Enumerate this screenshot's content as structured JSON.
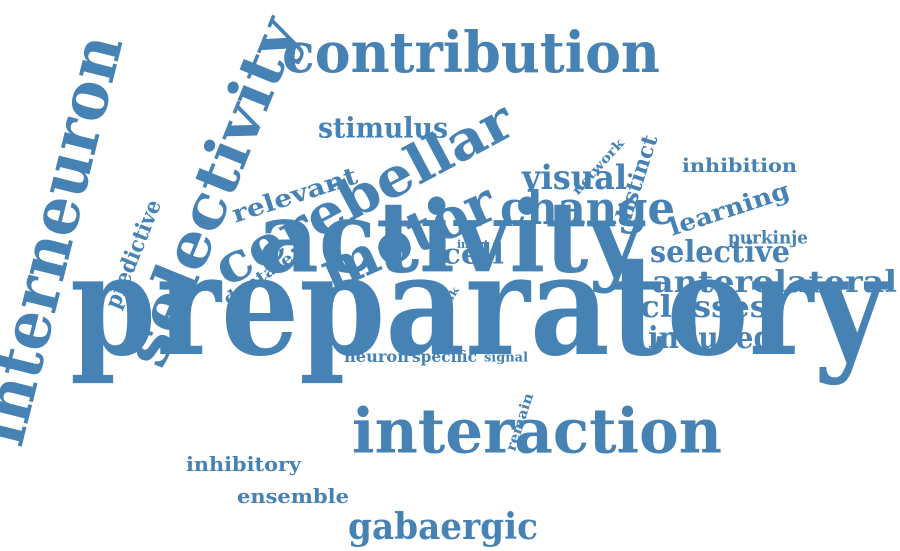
{
  "word_cloud": {
    "color": "#4682b4",
    "words": [
      {
        "id": "preparatory",
        "text": "preparatory",
        "orientation": "horizontal"
      },
      {
        "id": "activity",
        "text": "activity",
        "orientation": "horizontal"
      },
      {
        "id": "interneuron",
        "text": "interneuron",
        "orientation": "vertical-up"
      },
      {
        "id": "selectivity",
        "text": "selectivity",
        "orientation": "diagonal-up"
      },
      {
        "id": "contribution",
        "text": "contribution",
        "orientation": "horizontal"
      },
      {
        "id": "cerebellar",
        "text": "cerebellar",
        "orientation": "diagonal-up"
      },
      {
        "id": "motor",
        "text": "motor",
        "orientation": "diagonal-up"
      },
      {
        "id": "interaction",
        "text": "interaction",
        "orientation": "horizontal"
      },
      {
        "id": "change",
        "text": "change",
        "orientation": "horizontal"
      },
      {
        "id": "visual",
        "text": "visual",
        "orientation": "horizontal"
      },
      {
        "id": "stimulus",
        "text": "stimulus",
        "orientation": "horizontal"
      },
      {
        "id": "relevant",
        "text": "relevant",
        "orientation": "diagonal-up"
      },
      {
        "id": "distinct",
        "text": "distinct",
        "orientation": "vertical-up"
      },
      {
        "id": "network",
        "text": "network",
        "orientation": "diagonal-up"
      },
      {
        "id": "inhibition",
        "text": "inhibition",
        "orientation": "horizontal"
      },
      {
        "id": "learning",
        "text": "learning",
        "orientation": "diagonal-up"
      },
      {
        "id": "purkinje",
        "text": "purkinje",
        "orientation": "horizontal"
      },
      {
        "id": "selective",
        "text": "selective",
        "orientation": "horizontal"
      },
      {
        "id": "anterolateral",
        "text": "anterolateral",
        "orientation": "horizontal"
      },
      {
        "id": "classes",
        "text": "classes",
        "orientation": "horizontal"
      },
      {
        "id": "induced",
        "text": "induced",
        "orientation": "horizontal"
      },
      {
        "id": "cell",
        "text": "cell",
        "orientation": "horizontal"
      },
      {
        "id": "input",
        "text": "input",
        "orientation": "horizontal"
      },
      {
        "id": "task",
        "text": "task",
        "orientation": "diagonal-up"
      },
      {
        "id": "predictive",
        "text": "predictive",
        "orientation": "vertical-up"
      },
      {
        "id": "dentate",
        "text": "dentate",
        "orientation": "diagonal-up"
      },
      {
        "id": "neuron",
        "text": "neuron",
        "orientation": "horizontal"
      },
      {
        "id": "specific",
        "text": "specific",
        "orientation": "horizontal"
      },
      {
        "id": "signal",
        "text": "signal",
        "orientation": "horizontal"
      },
      {
        "id": "remain",
        "text": "remain",
        "orientation": "vertical-up"
      },
      {
        "id": "inhibitory",
        "text": "inhibitory",
        "orientation": "horizontal"
      },
      {
        "id": "ensemble",
        "text": "ensemble",
        "orientation": "horizontal"
      },
      {
        "id": "gabaergic",
        "text": "gabaergic",
        "orientation": "horizontal"
      }
    ]
  }
}
